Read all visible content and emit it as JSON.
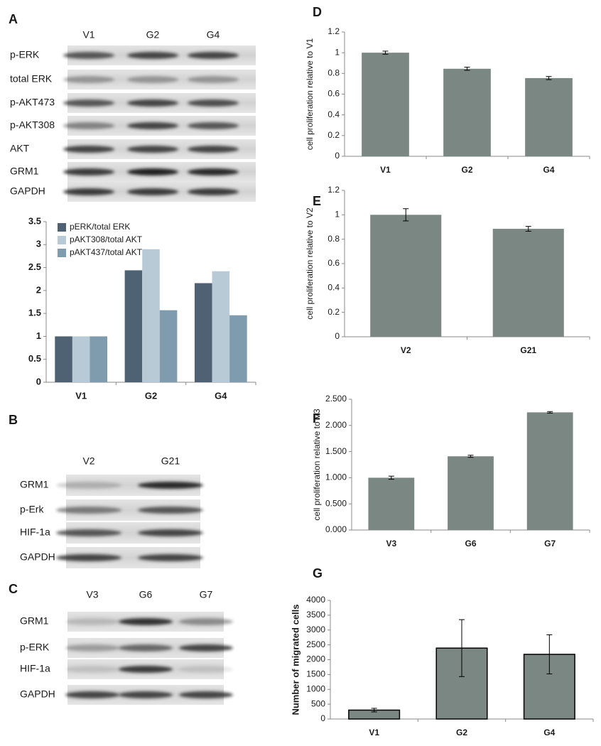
{
  "panel_labels": [
    "A",
    "B",
    "C",
    "D",
    "E",
    "F",
    "G"
  ],
  "blots": [
    {
      "lanes": [
        "V1",
        "G2",
        "G4"
      ],
      "rows": [
        "p-ERK",
        "total ERK",
        "p-AKT473",
        "p-AKT308",
        "AKT",
        "GRM1",
        "GAPDH"
      ]
    },
    {
      "lanes": [
        "V2",
        "G21"
      ],
      "rows": [
        "GRM1",
        "p-Erk",
        "HIF-1a",
        "GAPDH"
      ]
    },
    {
      "lanes": [
        "V3",
        "G6",
        "G7"
      ],
      "rows": [
        "GRM1",
        "p-ERK",
        "HIF-1a",
        "GAPDH"
      ]
    }
  ],
  "chart_data": [
    {
      "type": "bar",
      "categories": [
        "V1",
        "G2",
        "G4"
      ],
      "series": [
        {
          "name": "pERK/total ERK",
          "color": "#4f6273",
          "values": [
            1,
            2.44,
            2.16
          ]
        },
        {
          "name": "pAKT308/total AKT",
          "color": "#b7cad5",
          "values": [
            1,
            2.9,
            2.42
          ]
        },
        {
          "name": "pAKT437/total AKT",
          "color": "#7f9bae",
          "values": [
            1,
            1.57,
            1.46
          ]
        }
      ],
      "ylim": [
        0,
        3.5
      ],
      "yticks": [
        0,
        0.5,
        1,
        1.5,
        2,
        2.5,
        3,
        3.5
      ],
      "grid": false,
      "legend": "upper left"
    },
    {
      "type": "bar",
      "y_label": "cell proliferation relative to V1",
      "categories": [
        "V1",
        "G2",
        "G4"
      ],
      "values": [
        1,
        0.845,
        0.755
      ],
      "errors": [
        0.015,
        0.015,
        0.015
      ],
      "color": "#7b8783",
      "ylim": [
        0,
        1.2
      ],
      "yticks": [
        0,
        0.2,
        0.4,
        0.6,
        0.8,
        1,
        1.2
      ],
      "grid": false
    },
    {
      "type": "bar",
      "y_label": "cell proliferation relative to V2",
      "categories": [
        "V2",
        "G21"
      ],
      "values": [
        1,
        0.885
      ],
      "errors": [
        0.05,
        0.02
      ],
      "color": "#7b8783",
      "ylim": [
        0,
        1.2
      ],
      "yticks": [
        0,
        0.2,
        0.4,
        0.6,
        0.8,
        1,
        1.2
      ],
      "grid": false
    },
    {
      "type": "bar",
      "y_label": "cell proliferation relative to V3",
      "categories": [
        "V3",
        "G6",
        "G7"
      ],
      "values": [
        1,
        1.41,
        2.25
      ],
      "errors": [
        0.03,
        0.02,
        0.015
      ],
      "color": "#7b8783",
      "ylim": [
        0,
        2.5
      ],
      "yticks": [
        {
          "value": 0,
          "label": "0.000"
        },
        {
          "value": 0.5,
          "label": "0.500"
        },
        {
          "value": 1,
          "label": "1.000"
        },
        {
          "value": 1.5,
          "label": "1.500"
        },
        {
          "value": 2,
          "label": "2.000"
        },
        {
          "value": 2.5,
          "label": "2.500"
        }
      ],
      "grid": false
    },
    {
      "type": "bar",
      "y_label": "Number of migrated cells",
      "categories": [
        "V1",
        "G2",
        "G4"
      ],
      "values": [
        300,
        2390,
        2180
      ],
      "errors": [
        60,
        960,
        660
      ],
      "color": "#7b8783",
      "edgecolor": "#000000",
      "ylim": [
        0,
        4000
      ],
      "yticks": [
        0,
        500,
        1000,
        1500,
        2000,
        2500,
        3000,
        3500,
        4000
      ],
      "grid": false
    }
  ]
}
